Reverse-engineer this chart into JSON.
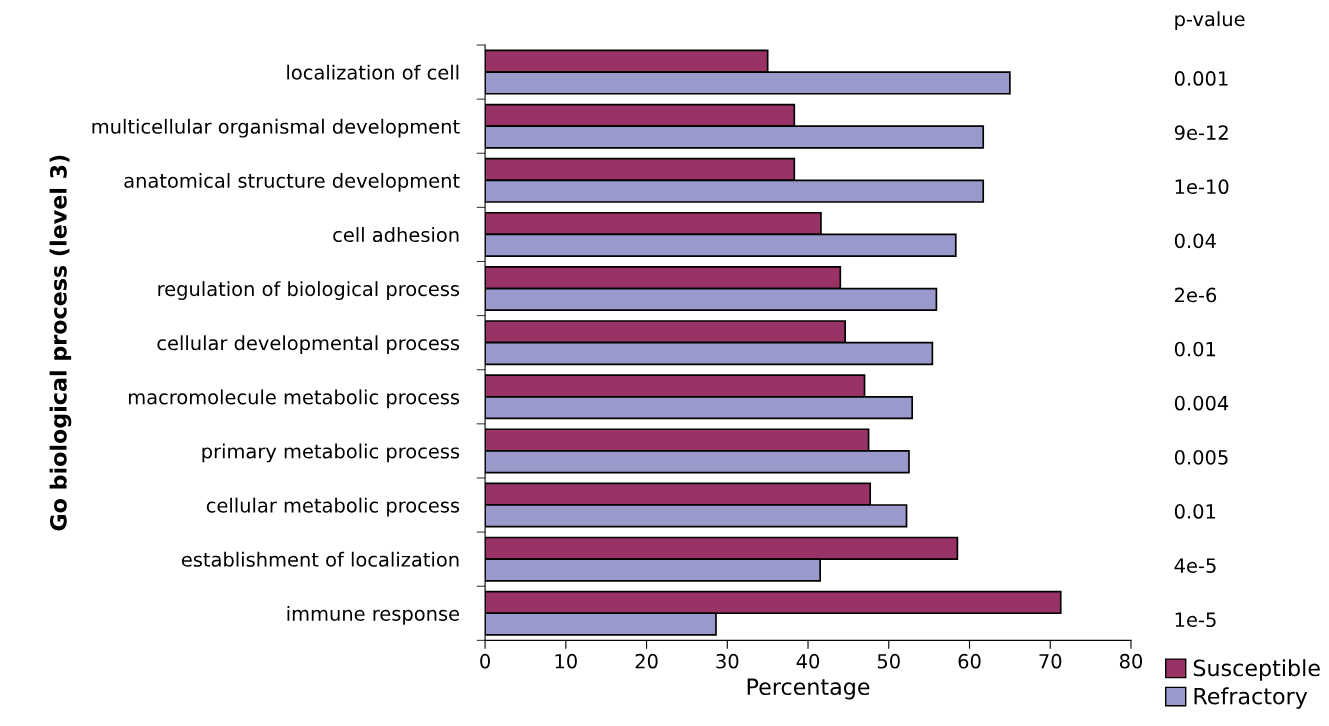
{
  "chart_data": {
    "type": "bar",
    "orientation": "horizontal",
    "xlabel": "Percentage",
    "ylabel": "Go biological process (level 3)",
    "categories": [
      "localization of cell",
      "multicellular organismal development",
      "anatomical structure development",
      "cell adhesion",
      "regulation of biological process",
      "cellular developmental process",
      "macromolecule metabolic process",
      "primary metabolic process",
      "cellular metabolic process",
      "establishment of localization",
      "immune response"
    ],
    "series": [
      {
        "name": "Susceptible",
        "color": "#993366",
        "values": [
          35.0,
          38.3,
          38.3,
          41.6,
          44.0,
          44.6,
          47.0,
          47.5,
          47.7,
          58.5,
          71.3
        ]
      },
      {
        "name": "Refractory",
        "color": "#9999cc",
        "values": [
          65.0,
          61.7,
          61.7,
          58.3,
          55.9,
          55.4,
          52.9,
          52.5,
          52.2,
          41.5,
          28.6
        ]
      }
    ],
    "annotations": [
      "p-value",
      "0.001",
      "9e-12",
      "1e-10",
      "0.04",
      "2e-6",
      "0.01",
      "0.004",
      "0.005",
      "0.01",
      "4e-5",
      "1e-5"
    ],
    "xlim": [
      0,
      80
    ],
    "xticks": [
      0,
      10,
      20,
      30,
      40,
      50,
      60,
      70,
      80
    ],
    "grid": false,
    "legend": "bottom right"
  }
}
